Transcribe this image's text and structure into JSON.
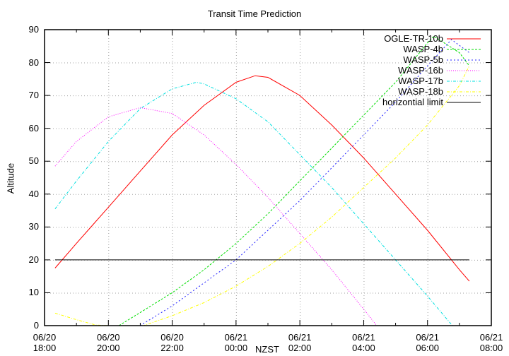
{
  "chart_data": {
    "type": "line",
    "title": "Transit Time Prediction",
    "xlabel": "NZST",
    "ylabel": "Altitude",
    "ylim": [
      0,
      90
    ],
    "yticks": [
      0,
      10,
      20,
      30,
      40,
      50,
      60,
      70,
      80,
      90
    ],
    "xticks": [
      {
        "date": "06/20",
        "time": "18:00"
      },
      {
        "date": "06/20",
        "time": "20:00"
      },
      {
        "date": "06/20",
        "time": "22:00"
      },
      {
        "date": "06/21",
        "time": "00:00"
      },
      {
        "date": "06/21",
        "time": "02:00"
      },
      {
        "date": "06/21",
        "time": "04:00"
      },
      {
        "date": "06/21",
        "time": "06:00"
      },
      {
        "date": "06/21",
        "time": "08:00"
      }
    ],
    "x_unit": "hours since 06/20 18:00",
    "xlim": [
      0,
      14
    ],
    "grid": true,
    "legend_position": "top-right",
    "series": [
      {
        "name": "OGLE-TR-10b",
        "color": "#ff0000",
        "dash": "",
        "x": [
          0.33,
          1,
          2,
          3,
          4,
          5,
          6,
          6.6,
          7,
          8,
          9,
          10,
          11,
          12,
          13,
          13.31
        ],
        "y": [
          17.5,
          25,
          36,
          47,
          58,
          67,
          74,
          76,
          75.5,
          70,
          61,
          51,
          40,
          29,
          17,
          13.5
        ]
      },
      {
        "name": "WASP-4b",
        "color": "#00dd00",
        "dash": "3,2",
        "x": [
          2.33,
          3,
          4,
          5,
          6,
          7,
          8,
          9,
          10,
          11,
          12,
          12.2,
          13,
          13.31
        ],
        "y": [
          0,
          4,
          10,
          17,
          25,
          34,
          44,
          54,
          64,
          74,
          86,
          88,
          83,
          79
        ]
      },
      {
        "name": "WASP-5b",
        "color": "#2222ff",
        "dash": "2,3",
        "x": [
          2.99,
          4,
          5,
          6,
          7,
          8,
          9,
          10,
          11,
          12,
          12.75,
          13.31
        ],
        "y": [
          0,
          6,
          13,
          20,
          29,
          38,
          48,
          58,
          68,
          79,
          87,
          83
        ]
      },
      {
        "name": "WASP-16b",
        "color": "#ff00ff",
        "dash": "1,2",
        "x": [
          0.33,
          1,
          2,
          3,
          4,
          5,
          6,
          7,
          8,
          9,
          10,
          10.41
        ],
        "y": [
          48.5,
          56,
          63.5,
          66.3,
          64.5,
          58,
          49,
          39,
          28,
          17,
          5,
          0
        ]
      },
      {
        "name": "WASP-17b",
        "color": "#00e0e0",
        "dash": "4,2,1,2",
        "x": [
          0.33,
          1,
          2,
          3,
          4,
          4.76,
          5,
          6,
          7,
          8,
          9,
          10,
          11,
          12,
          12.78
        ],
        "y": [
          35.5,
          44,
          56,
          66,
          72,
          74,
          73.5,
          69,
          62,
          52,
          42,
          31,
          20,
          9,
          0
        ]
      },
      {
        "name": "WASP-18b",
        "color": "#ffff00",
        "dash": "4,2,1,2",
        "x": [
          0.33,
          1,
          1.6,
          2.0,
          3.1,
          4,
          5,
          6,
          7,
          8,
          9,
          10,
          11,
          12,
          13,
          13.31
        ],
        "y": [
          3.8,
          1.8,
          0.2,
          0,
          0,
          3,
          7,
          12,
          18,
          25,
          33,
          42,
          51,
          61,
          73,
          79
        ]
      },
      {
        "name": "horizontial limit",
        "color": "#000000",
        "dash": "",
        "x": [
          0.33,
          13.31
        ],
        "y": [
          20,
          20
        ]
      }
    ]
  }
}
